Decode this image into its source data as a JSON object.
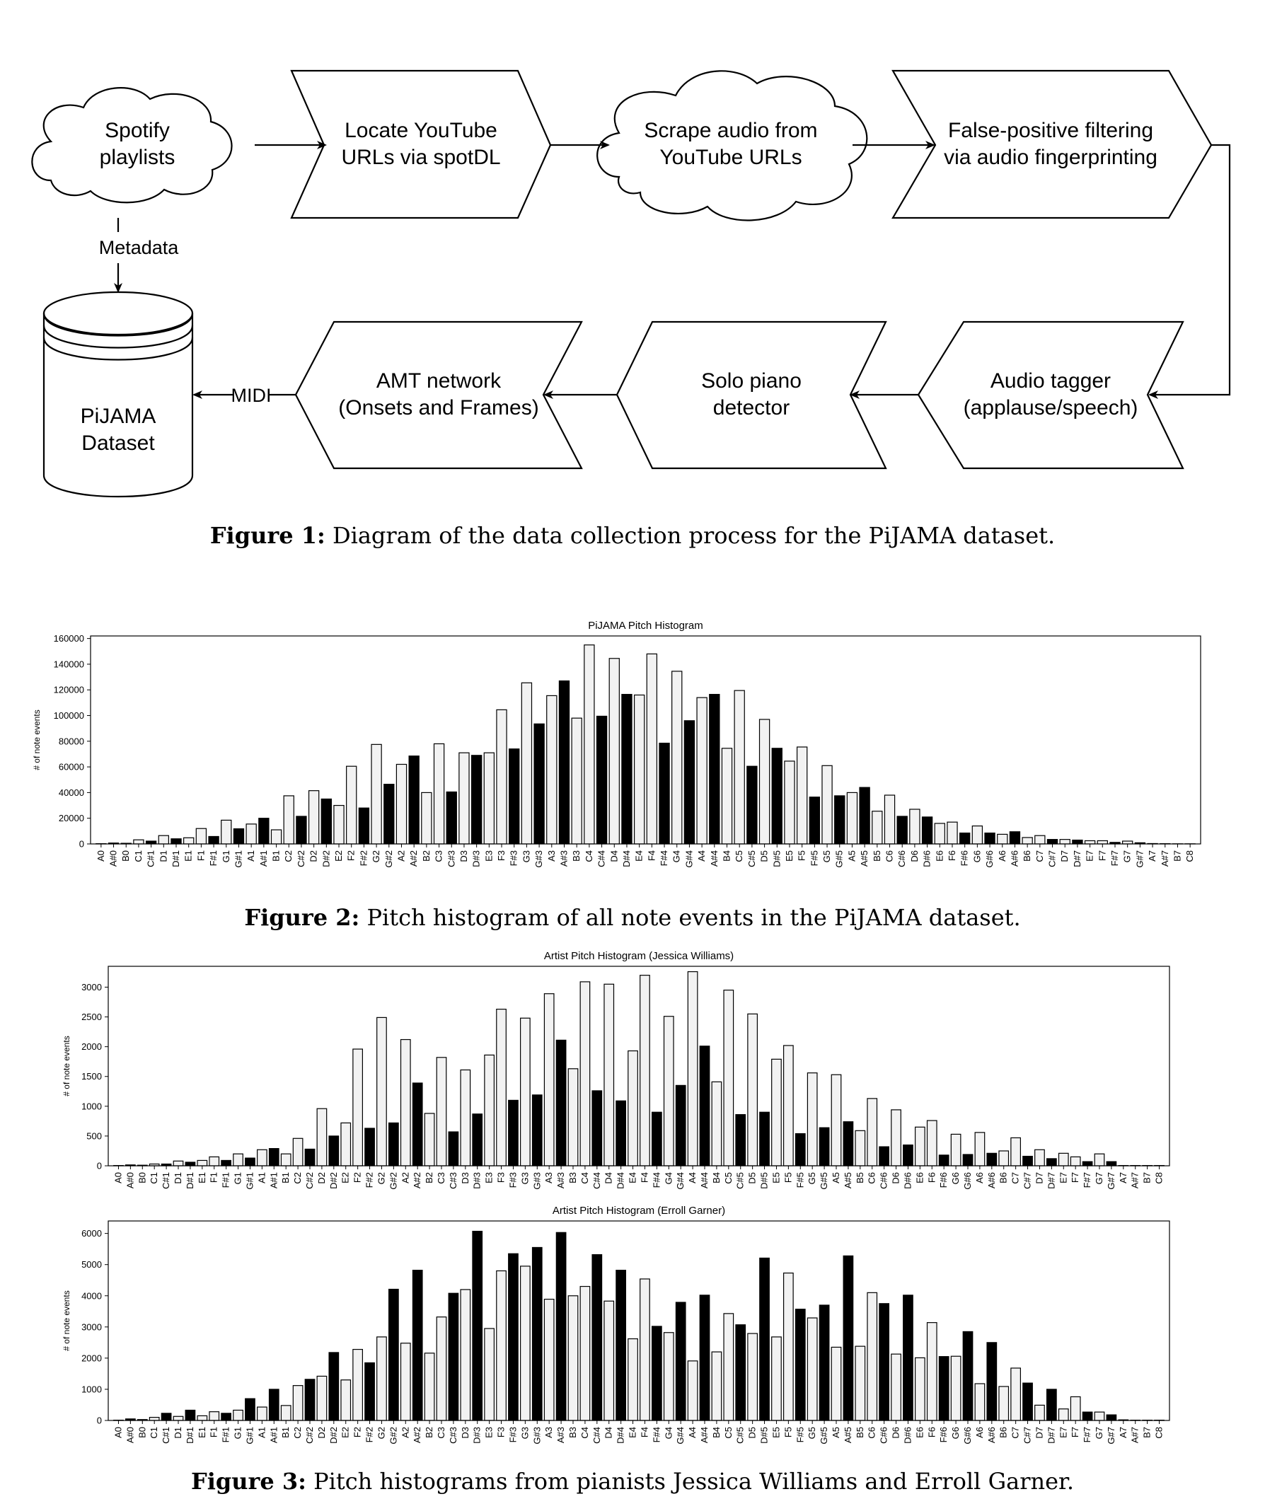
{
  "figure1": {
    "nodes": {
      "spotify": [
        "Spotify",
        "playlists"
      ],
      "locate": [
        "Locate YouTube",
        "URLs via spotDL"
      ],
      "scrape": [
        "Scrape audio from",
        "YouTube URLs"
      ],
      "filter": [
        "False-positive filtering",
        "via audio fingerprinting"
      ],
      "tagger": [
        "Audio tagger",
        "(applause/speech)"
      ],
      "solo": [
        "Solo piano",
        "detector"
      ],
      "amt": [
        "AMT network",
        "(Onsets and Frames)"
      ],
      "dataset": [
        "PiJAMA",
        "Dataset"
      ]
    },
    "edge_labels": {
      "metadata": "Metadata",
      "midi": "MIDI"
    },
    "caption_label": "Figure 1:",
    "caption_text": " Diagram of the data collection process for the PiJAMA dataset."
  },
  "figure2": {
    "caption_label": "Figure 2:",
    "caption_text": " Pitch histogram of all note events in the PiJAMA dataset."
  },
  "figure3": {
    "caption_label": "Figure 3:",
    "caption_text": " Pitch histograms from pianists Jessica Williams and Erroll Garner."
  },
  "colors": {
    "white_key": "#f2f2f2",
    "black_key": "#000000",
    "outline": "#000000"
  },
  "chart_data": [
    {
      "type": "bar",
      "title": "PiJAMA Pitch Histogram",
      "xlabel": "",
      "ylabel": "# of note events",
      "ylim": [
        0,
        162000
      ],
      "yticks": [
        0,
        20000,
        40000,
        60000,
        80000,
        100000,
        120000,
        140000,
        160000
      ],
      "categories": [
        "A0",
        "A#0",
        "B0",
        "C1",
        "C#1",
        "D1",
        "D#1",
        "E1",
        "F1",
        "F#1",
        "G1",
        "G#1",
        "A1",
        "A#1",
        "B1",
        "C2",
        "C#2",
        "D2",
        "D#2",
        "E2",
        "F2",
        "F#2",
        "G2",
        "G#2",
        "A2",
        "A#2",
        "B2",
        "C3",
        "C#3",
        "D3",
        "D#3",
        "E3",
        "F3",
        "F#3",
        "G3",
        "G#3",
        "A3",
        "A#3",
        "B3",
        "C4",
        "C#4",
        "D4",
        "D#4",
        "E4",
        "F4",
        "F#4",
        "G4",
        "G#4",
        "A4",
        "A#4",
        "B4",
        "C5",
        "C#5",
        "D5",
        "D#5",
        "E5",
        "F5",
        "F#5",
        "G5",
        "G#5",
        "A5",
        "A#5",
        "B5",
        "C6",
        "C#6",
        "D6",
        "D#6",
        "E6",
        "F6",
        "F#6",
        "G6",
        "G#6",
        "A6",
        "A#6",
        "B6",
        "C7",
        "C#7",
        "D7",
        "D#7",
        "E7",
        "F7",
        "F#7",
        "G7",
        "G#7",
        "A7",
        "A#7",
        "B7",
        "C8"
      ],
      "values": [
        200,
        700,
        500,
        3200,
        2200,
        6500,
        4000,
        4800,
        12000,
        5800,
        18500,
        11800,
        15500,
        20000,
        11000,
        37500,
        21500,
        41500,
        35000,
        30000,
        60500,
        28000,
        77500,
        46500,
        62000,
        68500,
        40000,
        78000,
        40500,
        71000,
        69000,
        71000,
        104500,
        74000,
        125500,
        93500,
        115500,
        127000,
        98000,
        155000,
        99500,
        144500,
        116500,
        116000,
        148000,
        78500,
        134500,
        96000,
        114000,
        116500,
        74500,
        119500,
        60500,
        97000,
        74500,
        64500,
        75500,
        36500,
        61000,
        37500,
        40000,
        44000,
        25500,
        38000,
        21500,
        27000,
        21000,
        16000,
        17000,
        8500,
        14000,
        8500,
        7500,
        9500,
        5000,
        6500,
        3500,
        3500,
        3000,
        2500,
        2500,
        1200,
        2200,
        900,
        300,
        200,
        100,
        100
      ]
    },
    {
      "type": "bar",
      "title": "Artist Pitch Histogram (Jessica Williams)",
      "xlabel": "",
      "ylabel": "# of note events",
      "ylim": [
        0,
        3350
      ],
      "yticks": [
        0,
        500,
        1000,
        1500,
        2000,
        2500,
        3000
      ],
      "categories": [
        "A0",
        "A#0",
        "B0",
        "C1",
        "C#1",
        "D1",
        "D#1",
        "E1",
        "F1",
        "F#1",
        "G1",
        "G#1",
        "A1",
        "A#1",
        "B1",
        "C2",
        "C#2",
        "D2",
        "D#2",
        "E2",
        "F2",
        "F#2",
        "G2",
        "G#2",
        "A2",
        "A#2",
        "B2",
        "C3",
        "C#3",
        "D3",
        "D#3",
        "E3",
        "F3",
        "F#3",
        "G3",
        "G#3",
        "A3",
        "A#3",
        "B3",
        "C4",
        "C#4",
        "D4",
        "D#4",
        "E4",
        "F4",
        "F#4",
        "G4",
        "G#4",
        "A4",
        "A#4",
        "B4",
        "C5",
        "C#5",
        "D5",
        "D#5",
        "E5",
        "F5",
        "F#5",
        "G5",
        "G#5",
        "A5",
        "A#5",
        "B5",
        "C6",
        "C#6",
        "D6",
        "D#6",
        "E6",
        "F6",
        "F#6",
        "G6",
        "G#6",
        "A6",
        "A#6",
        "B6",
        "C7",
        "C#7",
        "D7",
        "D#7",
        "E7",
        "F7",
        "F#7",
        "G7",
        "G#7",
        "A7",
        "A#7",
        "B7",
        "C8"
      ],
      "values": [
        5,
        15,
        10,
        30,
        30,
        80,
        60,
        90,
        150,
        90,
        200,
        130,
        270,
        290,
        200,
        460,
        280,
        960,
        500,
        720,
        1960,
        630,
        2490,
        720,
        2120,
        1390,
        880,
        1820,
        570,
        1610,
        870,
        1860,
        2630,
        1100,
        2480,
        1190,
        2890,
        2110,
        1630,
        3090,
        1260,
        3050,
        1090,
        1930,
        3200,
        900,
        2510,
        1350,
        3260,
        2010,
        1410,
        2950,
        860,
        2550,
        900,
        1790,
        2020,
        540,
        1560,
        640,
        1530,
        740,
        590,
        1130,
        320,
        940,
        350,
        650,
        760,
        180,
        530,
        190,
        560,
        210,
        250,
        470,
        160,
        270,
        120,
        210,
        150,
        70,
        200,
        70,
        5,
        5,
        5,
        5
      ]
    },
    {
      "type": "bar",
      "title": "Artist Pitch Histogram (Erroll Garner)",
      "xlabel": "",
      "ylabel": "# of note events",
      "ylim": [
        0,
        6400
      ],
      "yticks": [
        0,
        1000,
        2000,
        3000,
        4000,
        5000,
        6000
      ],
      "categories": [
        "A0",
        "A#0",
        "B0",
        "C1",
        "C#1",
        "D1",
        "D#1",
        "E1",
        "F1",
        "F#1",
        "G1",
        "G#1",
        "A1",
        "A#1",
        "B1",
        "C2",
        "C#2",
        "D2",
        "D#2",
        "E2",
        "F2",
        "F#2",
        "G2",
        "G#2",
        "A2",
        "A#2",
        "B2",
        "C3",
        "C#3",
        "D3",
        "D#3",
        "E3",
        "F3",
        "F#3",
        "G3",
        "G#3",
        "A3",
        "A#3",
        "B3",
        "C4",
        "C#4",
        "D4",
        "D#4",
        "E4",
        "F4",
        "F#4",
        "G4",
        "G#4",
        "A4",
        "A#4",
        "B4",
        "C5",
        "C#5",
        "D5",
        "D#5",
        "E5",
        "F5",
        "F#5",
        "G5",
        "G#5",
        "A5",
        "A#5",
        "B5",
        "C6",
        "C#6",
        "D6",
        "D#6",
        "E6",
        "F6",
        "F#6",
        "G6",
        "G#6",
        "A6",
        "A#6",
        "B6",
        "C7",
        "C#7",
        "D7",
        "D#7",
        "E7",
        "F7",
        "F#7",
        "G7",
        "G#7",
        "A7",
        "A#7",
        "B7",
        "C8"
      ],
      "values": [
        10,
        50,
        30,
        100,
        230,
        130,
        330,
        150,
        280,
        230,
        330,
        700,
        430,
        1000,
        480,
        1120,
        1320,
        1420,
        2180,
        1300,
        2280,
        1850,
        2680,
        4210,
        2480,
        4820,
        2160,
        3320,
        4080,
        4200,
        6070,
        2950,
        4800,
        5350,
        4950,
        5550,
        3890,
        6030,
        4000,
        4300,
        5320,
        3830,
        4820,
        2620,
        4540,
        3020,
        2820,
        3790,
        1910,
        4020,
        2200,
        3430,
        3070,
        2790,
        5210,
        2680,
        4730,
        3570,
        3290,
        3700,
        2350,
        5280,
        2380,
        4100,
        3750,
        2130,
        4020,
        2010,
        3140,
        2050,
        2060,
        2850,
        1180,
        2500,
        1090,
        1680,
        1200,
        490,
        1000,
        370,
        760,
        270,
        270,
        180,
        20,
        10,
        10,
        10
      ]
    }
  ]
}
